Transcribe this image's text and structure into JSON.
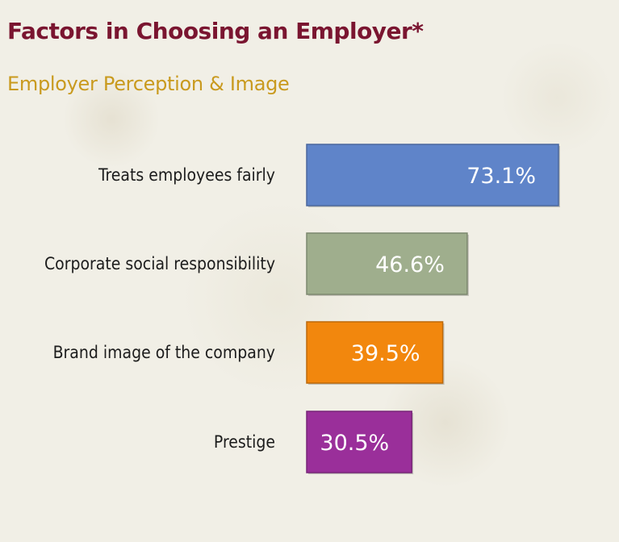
{
  "header": {
    "title": "Factors in Choosing an Employer*",
    "subtitle": "Employer Perception & Image"
  },
  "chart_data": {
    "type": "bar",
    "orientation": "horizontal",
    "title": "Factors in Choosing an Employer*",
    "subtitle": "Employer Perception & Image",
    "categories": [
      "Treats employees fairly",
      "Corporate social responsibility",
      "Brand image of the company",
      "Prestige"
    ],
    "values": [
      73.1,
      46.6,
      39.5,
      30.5
    ],
    "value_labels": [
      "73.1%",
      "46.6%",
      "39.5%",
      "30.5%"
    ],
    "colors": [
      "#5f84c9",
      "#9fae8d",
      "#f2870d",
      "#9a2f9a"
    ],
    "xlim": [
      0,
      100
    ],
    "grid": false,
    "legend": "none"
  }
}
